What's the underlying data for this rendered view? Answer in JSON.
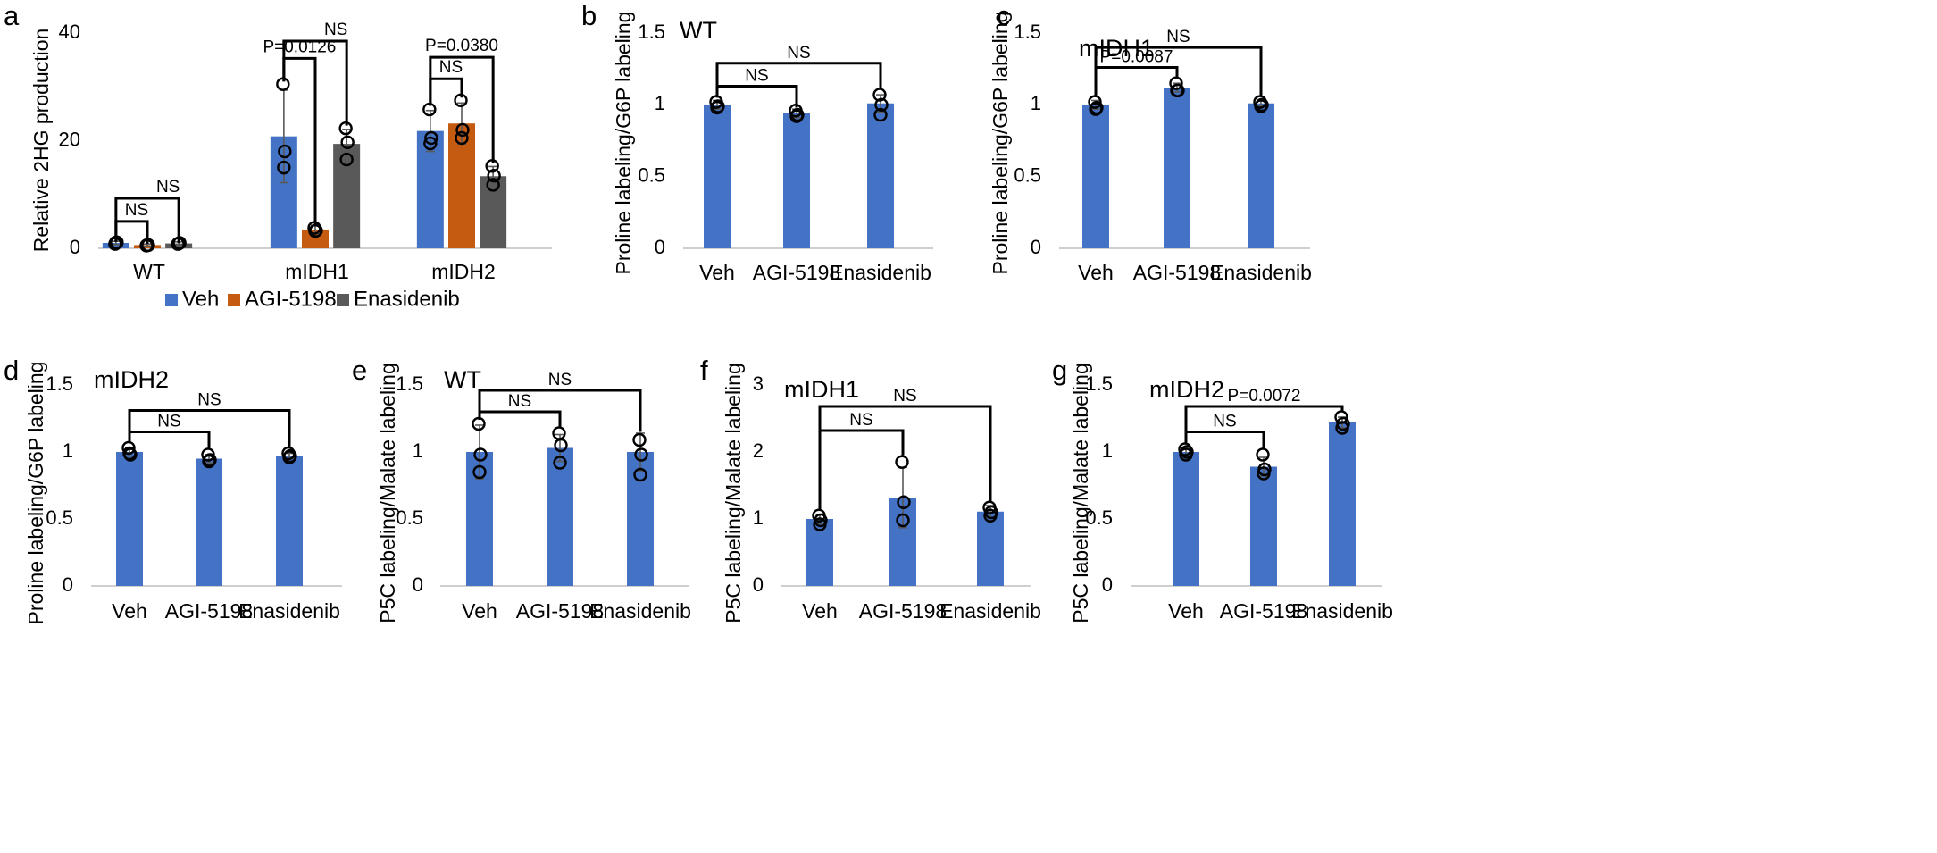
{
  "colors": {
    "Veh": "#4472C4",
    "AGI-5198": "#C55A11",
    "Enasidenib": "#595959"
  },
  "legend": [
    "Veh",
    "AGI-5198",
    "Enasidenib"
  ],
  "chart_data": [
    {
      "id": "a",
      "letter": "a",
      "type": "bar",
      "title": "",
      "ylabel": "Relative 2HG production",
      "xlabel": "",
      "ylim": [
        0,
        40
      ],
      "yticks": [
        "0",
        "20",
        "40"
      ],
      "categories": [
        "WT",
        "mIDH1",
        "mIDH2"
      ],
      "series": [
        {
          "name": "Veh",
          "values": [
            1.0,
            20.8,
            21.8
          ],
          "err": [
            0.3,
            8.6,
            3.8
          ],
          "points": [
            [
              0.8,
              1.1,
              1.1
            ],
            [
              30.5,
              18.0,
              15.0
            ],
            [
              25.8,
              20.5,
              19.5
            ]
          ]
        },
        {
          "name": "AGI-5198",
          "values": [
            0.6,
            3.5,
            23.2
          ],
          "err": [
            0.2,
            0.8,
            3.8
          ],
          "points": [
            [
              0.5,
              0.6,
              0.6
            ],
            [
              3.8,
              3.3,
              3.2
            ],
            [
              27.5,
              22.0,
              20.5
            ]
          ]
        },
        {
          "name": "Enasidenib",
          "values": [
            0.9,
            19.4,
            13.4
          ],
          "err": [
            0.3,
            2.7,
            1.8
          ],
          "points": [
            [
              0.8,
              1.0,
              0.9
            ],
            [
              22.3,
              19.7,
              16.5
            ],
            [
              15.3,
              13.5,
              11.8
            ]
          ]
        }
      ],
      "annotations": [
        {
          "text": "NS",
          "from": [
            0,
            0
          ],
          "to": [
            0,
            1
          ],
          "level": 5.0,
          "ends": [
            1.2,
            0.8
          ]
        },
        {
          "text": "NS",
          "from": [
            0,
            0
          ],
          "to": [
            0,
            2
          ],
          "level": 9.3,
          "ends": [
            1.2,
            1.0
          ]
        },
        {
          "text": "P=0.0126",
          "from": [
            1,
            0
          ],
          "to": [
            1,
            1
          ],
          "level": 35.3,
          "ends": [
            31.0,
            4.5
          ]
        },
        {
          "text": "NS",
          "from": [
            1,
            0
          ],
          "to": [
            1,
            2
          ],
          "level": 38.5,
          "ends": [
            31.0,
            22.8
          ]
        },
        {
          "text": "P=0.0380",
          "from": [
            2,
            0
          ],
          "to": [
            2,
            2
          ],
          "level": 35.5,
          "ends": [
            26.5,
            15.8
          ]
        },
        {
          "text": "NS",
          "from": [
            2,
            0
          ],
          "to": [
            2,
            1
          ],
          "level": 31.5,
          "ends": [
            26.5,
            28.0
          ]
        }
      ]
    },
    {
      "id": "b",
      "letter": "b",
      "type": "bar",
      "title": "WT",
      "ylabel": "Proline labeling/G6P labeling",
      "xlabel": "",
      "ylim": [
        0,
        1.5
      ],
      "yticks": [
        "0",
        "0.5",
        "1",
        "1.5"
      ],
      "categories": [
        "Veh",
        "AGI-5198",
        "Enasidenib"
      ],
      "values": [
        1.0,
        0.94,
        1.01
      ],
      "err": [
        0.03,
        0.03,
        0.06
      ],
      "points": [
        [
          1.02,
          0.99,
          0.98
        ],
        [
          0.96,
          0.93,
          0.92
        ],
        [
          1.07,
          1.0,
          0.93
        ]
      ],
      "annotations": [
        {
          "text": "NS",
          "from": 0,
          "to": 1,
          "level": 1.13,
          "ends": [
            1.05,
            0.98
          ]
        },
        {
          "text": "NS",
          "from": 0,
          "to": 2,
          "level": 1.29,
          "ends": [
            1.05,
            1.11
          ]
        }
      ]
    },
    {
      "id": "c",
      "letter": "c",
      "type": "bar",
      "title": "mIDH1",
      "ylabel": "Proline labeling/G6P labeling",
      "xlabel": "",
      "ylim": [
        0,
        1.5
      ],
      "yticks": [
        "0",
        "0.5",
        "1",
        "1.5"
      ],
      "categories": [
        "Veh",
        "AGI-5198",
        "Enasidenib"
      ],
      "values": [
        1.0,
        1.12,
        1.01
      ],
      "err": [
        0.03,
        0.03,
        0.02
      ],
      "points": [
        [
          1.02,
          0.98,
          0.97
        ],
        [
          1.15,
          1.1,
          1.1
        ],
        [
          1.02,
          1.0,
          0.99
        ]
      ],
      "annotations": [
        {
          "text": "P=0.0087",
          "from": 0,
          "to": 1,
          "level": 1.26,
          "ends": [
            1.06,
            1.19
          ]
        },
        {
          "text": "NS",
          "from": 0,
          "to": 2,
          "level": 1.4,
          "ends": [
            1.06,
            1.06
          ]
        }
      ]
    },
    {
      "id": "d",
      "letter": "d",
      "type": "bar",
      "title": "mIDH2",
      "ylabel": "Proline labeling/G6P labeling",
      "xlabel": "",
      "ylim": [
        0,
        1.5
      ],
      "yticks": [
        "0",
        "0.5",
        "1",
        "1.5"
      ],
      "categories": [
        "Veh",
        "AGI-5198",
        "Enasidenib"
      ],
      "values": [
        1.0,
        0.95,
        0.97
      ],
      "err": [
        0.03,
        0.03,
        0.02
      ],
      "points": [
        [
          1.03,
          0.98,
          0.99
        ],
        [
          0.98,
          0.94,
          0.93
        ],
        [
          0.99,
          0.97,
          0.96
        ]
      ],
      "annotations": [
        {
          "text": "NS",
          "from": 0,
          "to": 1,
          "level": 1.15,
          "ends": [
            1.07,
            1.03
          ]
        },
        {
          "text": "NS",
          "from": 0,
          "to": 2,
          "level": 1.31,
          "ends": [
            1.07,
            1.03
          ]
        }
      ]
    },
    {
      "id": "e",
      "letter": "e",
      "type": "bar",
      "title": "WT",
      "ylabel": "P5C labeling/Malate labeling",
      "xlabel": "",
      "ylim": [
        0,
        1.5
      ],
      "yticks": [
        "0",
        "0.5",
        "1",
        "1.5"
      ],
      "categories": [
        "Veh",
        "AGI-5198",
        "Enasidenib"
      ],
      "values": [
        1.0,
        1.03,
        1.0
      ],
      "err": [
        0.2,
        0.1,
        0.14
      ],
      "points": [
        [
          1.21,
          0.98,
          0.85
        ],
        [
          1.14,
          1.05,
          0.92
        ],
        [
          1.09,
          0.98,
          0.83
        ]
      ],
      "annotations": [
        {
          "text": "NS",
          "from": 0,
          "to": 1,
          "level": 1.3,
          "ends": [
            1.24,
            1.18
          ]
        },
        {
          "text": "NS",
          "from": 0,
          "to": 2,
          "level": 1.46,
          "ends": [
            1.24,
            1.15
          ]
        }
      ]
    },
    {
      "id": "f",
      "letter": "f",
      "type": "bar",
      "title": "mIDH1",
      "ylabel": "P5C labeling/Malate labeling",
      "xlabel": "",
      "ylim": [
        0,
        3
      ],
      "yticks": [
        "0",
        "1",
        "2",
        "3"
      ],
      "categories": [
        "Veh",
        "AGI-5198",
        "Enasidenib"
      ],
      "values": [
        1.0,
        1.32,
        1.11
      ],
      "err": [
        0.07,
        0.45,
        0.09
      ],
      "points": [
        [
          1.05,
          0.98,
          0.92
        ],
        [
          1.85,
          1.25,
          0.98
        ],
        [
          1.17,
          1.1,
          1.05
        ]
      ],
      "annotations": [
        {
          "text": "NS",
          "from": 0,
          "to": 1,
          "level": 2.32,
          "ends": [
            1.15,
            1.95
          ]
        },
        {
          "text": "NS",
          "from": 0,
          "to": 2,
          "level": 2.68,
          "ends": [
            1.15,
            1.26
          ]
        }
      ]
    },
    {
      "id": "g",
      "letter": "g",
      "type": "bar",
      "title": "mIDH2",
      "ylabel": "P5C labeling/Malate labeling",
      "xlabel": "",
      "ylim": [
        0,
        1.5
      ],
      "yticks": [
        "0",
        "0.5",
        "1",
        "1.5"
      ],
      "categories": [
        "Veh",
        "AGI-5198",
        "Enasidenib"
      ],
      "values": [
        1.0,
        0.89,
        1.22
      ],
      "err": [
        0.03,
        0.07,
        0.04
      ],
      "points": [
        [
          1.02,
          1.0,
          0.98
        ],
        [
          0.98,
          0.87,
          0.84
        ],
        [
          1.26,
          1.21,
          1.18
        ]
      ],
      "annotations": [
        {
          "text": "NS",
          "from": 0,
          "to": 1,
          "level": 1.15,
          "ends": [
            1.07,
            1.03
          ]
        },
        {
          "text": "P=0.0072",
          "from": 0,
          "to": 2,
          "level": 1.34,
          "ends": [
            1.07,
            1.3
          ]
        }
      ]
    }
  ]
}
